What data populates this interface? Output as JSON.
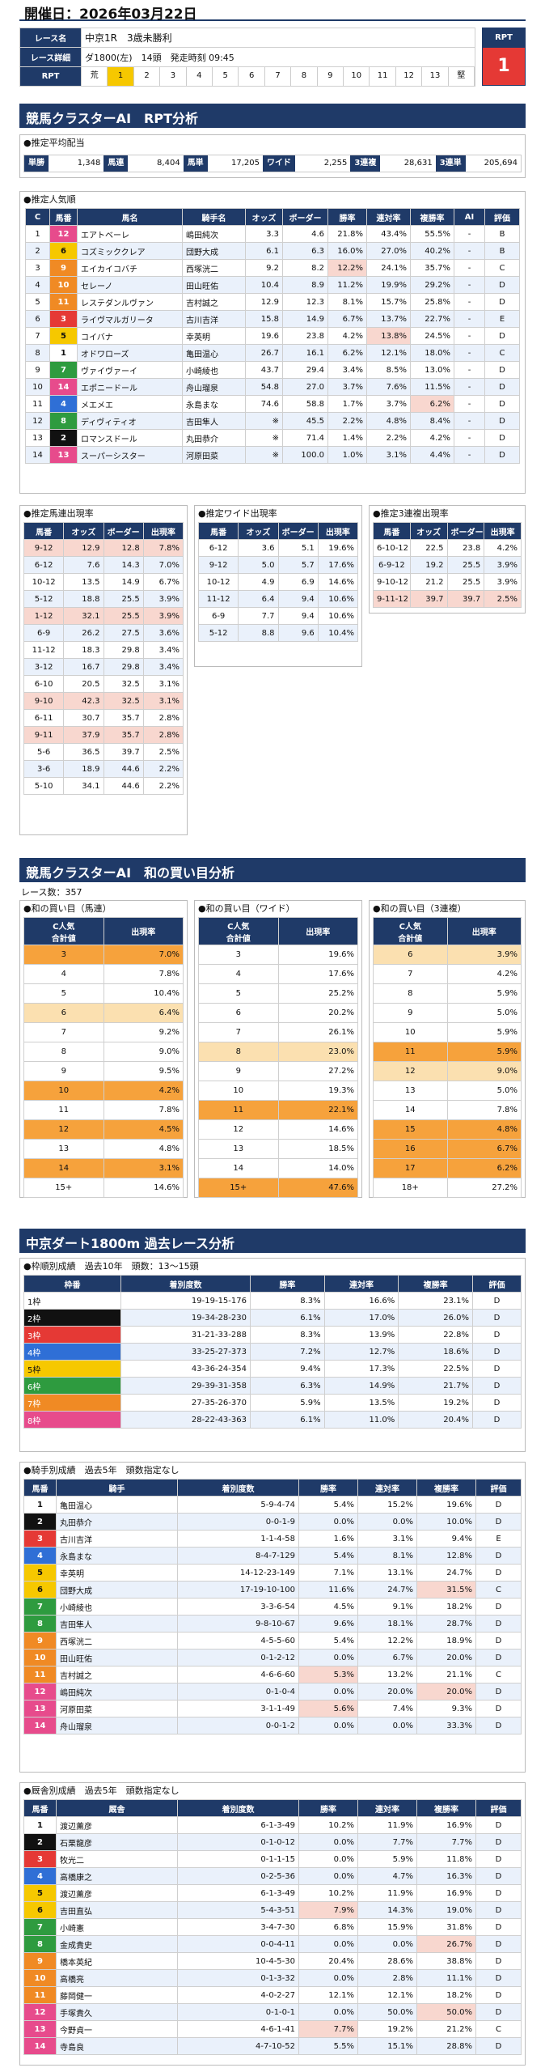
{
  "header": {
    "date": "開催日：2026年03月22日",
    "race_name_label": "レース名",
    "race_name": "中京1R　3歳未勝利",
    "race_detail_label": "レース詳細",
    "race_detail": "ダ1800(左)　14頭　発走時刻 09:45",
    "rpt_label": "RPT",
    "rpt_head": "RPT",
    "rpt_value": "1",
    "rpt_scale": [
      "荒",
      "1",
      "2",
      "3",
      "4",
      "5",
      "6",
      "7",
      "8",
      "9",
      "10",
      "11",
      "12",
      "13",
      "堅"
    ]
  },
  "colors": {
    "navy": "#1f3a68",
    "red": "#e53935",
    "waku": [
      "#ffffff",
      "#111111",
      "#e53935",
      "#2f6fd6",
      "#f6c800",
      "#2e9b3f",
      "#f08a24",
      "#e74b8c"
    ]
  },
  "sec1": {
    "title": "競馬クラスターAI　RPT分析",
    "payout": {
      "head": "●推定平均配当",
      "items": [
        {
          "k": "単勝",
          "v": "1,348"
        },
        {
          "k": "馬連",
          "v": "8,404"
        },
        {
          "k": "馬単",
          "v": "17,205"
        },
        {
          "k": "ワイド",
          "v": "2,255"
        },
        {
          "k": "3連複",
          "v": "28,631"
        },
        {
          "k": "3連単",
          "v": "205,694"
        }
      ]
    },
    "pop": {
      "head": "●推定人気順",
      "cols": [
        "C",
        "馬番",
        "馬名",
        "騎手名",
        "オッズ",
        "ボーダー",
        "勝率",
        "連対率",
        "複勝率",
        "AI",
        "評価"
      ],
      "rows": [
        [
          "1",
          "12",
          "エアトベーレ",
          "嶋田純次",
          "3.3",
          "4.6",
          "21.8%",
          "43.4%",
          "55.5%",
          "-",
          "B"
        ],
        [
          "2",
          "6",
          "コズミッククレア",
          "団野大成",
          "6.1",
          "6.3",
          "16.0%",
          "27.0%",
          "40.2%",
          "-",
          "B"
        ],
        [
          "3",
          "9",
          "エイカイコバチ",
          "西塚洸二",
          "9.2",
          "8.2",
          "12.2%",
          "24.1%",
          "35.7%",
          "-",
          "C"
        ],
        [
          "4",
          "10",
          "セレーノ",
          "田山旺佑",
          "10.4",
          "8.9",
          "11.2%",
          "19.9%",
          "29.2%",
          "-",
          "D"
        ],
        [
          "5",
          "11",
          "レステダンルヴァン",
          "吉村誠之",
          "12.9",
          "12.3",
          "8.1%",
          "15.7%",
          "25.8%",
          "-",
          "D"
        ],
        [
          "6",
          "3",
          "ライヴマルガリータ",
          "古川吉洋",
          "15.8",
          "14.9",
          "6.7%",
          "13.7%",
          "22.7%",
          "-",
          "E"
        ],
        [
          "7",
          "5",
          "コイバナ",
          "幸英明",
          "19.6",
          "23.8",
          "4.2%",
          "13.8%",
          "24.5%",
          "-",
          "D"
        ],
        [
          "8",
          "1",
          "オドワローズ",
          "亀田温心",
          "26.7",
          "16.1",
          "6.2%",
          "12.1%",
          "18.0%",
          "-",
          "C"
        ],
        [
          "9",
          "7",
          "ヴァイヴァーイ",
          "小崎綾也",
          "43.7",
          "29.4",
          "3.4%",
          "8.5%",
          "13.0%",
          "-",
          "D"
        ],
        [
          "10",
          "14",
          "エポニードール",
          "舟山瑠泉",
          "54.8",
          "27.0",
          "3.7%",
          "7.6%",
          "11.5%",
          "-",
          "D"
        ],
        [
          "11",
          "4",
          "メエメエ",
          "永島まな",
          "74.6",
          "58.8",
          "1.7%",
          "3.7%",
          "6.2%",
          "-",
          "D"
        ],
        [
          "12",
          "8",
          "ディヴィティオ",
          "吉田隼人",
          "※",
          "45.5",
          "2.2%",
          "4.8%",
          "8.4%",
          "-",
          "D"
        ],
        [
          "13",
          "2",
          "ロマンスドール",
          "丸田恭介",
          "※",
          "71.4",
          "1.4%",
          "2.2%",
          "4.2%",
          "-",
          "D"
        ],
        [
          "14",
          "13",
          "スーパーシスター",
          "河原田菜",
          "※",
          "100.0",
          "1.0%",
          "3.1%",
          "4.4%",
          "-",
          "D"
        ]
      ]
    },
    "umaren": {
      "head": "●推定馬連出現率",
      "cols": [
        "馬番",
        "オッズ",
        "ボーダー",
        "出現率"
      ],
      "rows": [
        [
          "9-12",
          "12.9",
          "12.8",
          "7.8%"
        ],
        [
          "6-12",
          "7.6",
          "14.3",
          "7.0%"
        ],
        [
          "10-12",
          "13.5",
          "14.9",
          "6.7%"
        ],
        [
          "5-12",
          "18.8",
          "25.5",
          "3.9%"
        ],
        [
          "1-12",
          "32.1",
          "25.5",
          "3.9%"
        ],
        [
          "6-9",
          "26.2",
          "27.5",
          "3.6%"
        ],
        [
          "11-12",
          "18.3",
          "29.8",
          "3.4%"
        ],
        [
          "3-12",
          "16.7",
          "29.8",
          "3.4%"
        ],
        [
          "6-10",
          "20.5",
          "32.5",
          "3.1%"
        ],
        [
          "9-10",
          "42.3",
          "32.5",
          "3.1%"
        ],
        [
          "6-11",
          "30.7",
          "35.7",
          "2.8%"
        ],
        [
          "9-11",
          "37.9",
          "35.7",
          "2.8%"
        ],
        [
          "5-6",
          "36.5",
          "39.7",
          "2.5%"
        ],
        [
          "3-6",
          "18.9",
          "44.6",
          "2.2%"
        ],
        [
          "5-10",
          "34.1",
          "44.6",
          "2.2%"
        ]
      ]
    },
    "wide": {
      "head": "●推定ワイド出現率",
      "cols": [
        "馬番",
        "オッズ",
        "ボーダー",
        "出現率"
      ],
      "rows": [
        [
          "6-12",
          "3.6",
          "5.1",
          "19.6%"
        ],
        [
          "9-12",
          "5.0",
          "5.7",
          "17.6%"
        ],
        [
          "10-12",
          "4.9",
          "6.9",
          "14.6%"
        ],
        [
          "11-12",
          "6.4",
          "9.4",
          "10.6%"
        ],
        [
          "6-9",
          "7.7",
          "9.4",
          "10.6%"
        ],
        [
          "5-12",
          "8.8",
          "9.6",
          "10.4%"
        ]
      ]
    },
    "trio": {
      "head": "●推定3連複出現率",
      "cols": [
        "馬番",
        "オッズ",
        "ボーダー",
        "出現率"
      ],
      "rows": [
        [
          "6-10-12",
          "22.5",
          "23.8",
          "4.2%"
        ],
        [
          "6-9-12",
          "19.2",
          "25.5",
          "3.9%"
        ],
        [
          "9-10-12",
          "21.2",
          "25.5",
          "3.9%"
        ],
        [
          "9-11-12",
          "39.7",
          "39.7",
          "2.5%"
        ]
      ]
    }
  },
  "sec2": {
    "title": "競馬クラスターAI　和の買い目分析",
    "count": "レース数：357",
    "tables": [
      {
        "head": "●和の買い目（馬連）",
        "cols": [
          "C人気\n合計値",
          "出現率"
        ],
        "rows": [
          [
            "3",
            "7.0%"
          ],
          [
            "4",
            "7.8%"
          ],
          [
            "5",
            "10.4%"
          ],
          [
            "6",
            "6.4%"
          ],
          [
            "7",
            "9.2%"
          ],
          [
            "8",
            "9.0%"
          ],
          [
            "9",
            "9.5%"
          ],
          [
            "10",
            "4.2%"
          ],
          [
            "11",
            "7.8%"
          ],
          [
            "12",
            "4.5%"
          ],
          [
            "13",
            "4.8%"
          ],
          [
            "14",
            "3.1%"
          ],
          [
            "15+",
            "14.6%"
          ]
        ]
      },
      {
        "head": "●和の買い目（ワイド）",
        "cols": [
          "C人気\n合計値",
          "出現率"
        ],
        "rows": [
          [
            "3",
            "19.6%"
          ],
          [
            "4",
            "17.6%"
          ],
          [
            "5",
            "25.2%"
          ],
          [
            "6",
            "20.2%"
          ],
          [
            "7",
            "26.1%"
          ],
          [
            "8",
            "23.0%"
          ],
          [
            "9",
            "27.2%"
          ],
          [
            "10",
            "19.3%"
          ],
          [
            "11",
            "22.1%"
          ],
          [
            "12",
            "14.6%"
          ],
          [
            "13",
            "18.5%"
          ],
          [
            "14",
            "14.0%"
          ],
          [
            "15+",
            "47.6%"
          ]
        ]
      },
      {
        "head": "●和の買い目（3連複）",
        "cols": [
          "C人気\n合計値",
          "出現率"
        ],
        "rows": [
          [
            "6",
            "3.9%"
          ],
          [
            "7",
            "4.2%"
          ],
          [
            "8",
            "5.9%"
          ],
          [
            "9",
            "5.0%"
          ],
          [
            "10",
            "5.9%"
          ],
          [
            "11",
            "5.9%"
          ],
          [
            "12",
            "9.0%"
          ],
          [
            "13",
            "5.0%"
          ],
          [
            "14",
            "7.8%"
          ],
          [
            "15",
            "4.8%"
          ],
          [
            "16",
            "6.7%"
          ],
          [
            "17",
            "6.2%"
          ],
          [
            "18+",
            "27.2%"
          ]
        ]
      }
    ]
  },
  "sec3": {
    "title": "中京ダート1800m 過去レース分析",
    "waku": {
      "head": "●枠順別成績　過去10年　頭数：13～15頭",
      "cols": [
        "枠番",
        "着別度数",
        "勝率",
        "連対率",
        "複勝率",
        "評価"
      ],
      "rows": [
        [
          "1枠",
          "19-19-15-176",
          "8.3%",
          "16.6%",
          "23.1%",
          "D"
        ],
        [
          "2枠",
          "19-34-28-230",
          "6.1%",
          "17.0%",
          "26.0%",
          "D"
        ],
        [
          "3枠",
          "31-21-33-288",
          "8.3%",
          "13.9%",
          "22.8%",
          "D"
        ],
        [
          "4枠",
          "33-25-27-373",
          "7.2%",
          "12.7%",
          "18.6%",
          "D"
        ],
        [
          "5枠",
          "43-36-24-354",
          "9.4%",
          "17.3%",
          "22.5%",
          "D"
        ],
        [
          "6枠",
          "29-39-31-358",
          "6.3%",
          "14.9%",
          "21.7%",
          "D"
        ],
        [
          "7枠",
          "27-35-26-370",
          "5.9%",
          "13.5%",
          "19.2%",
          "D"
        ],
        [
          "8枠",
          "28-22-43-363",
          "6.1%",
          "11.0%",
          "20.4%",
          "D"
        ]
      ]
    },
    "jockey": {
      "head": "●騎手別成績　過去5年　頭数指定なし",
      "cols": [
        "馬番",
        "騎手",
        "着別度数",
        "勝率",
        "連対率",
        "複勝率",
        "評価"
      ],
      "rows": [
        [
          "1",
          "亀田温心",
          "5-9-4-74",
          "5.4%",
          "15.2%",
          "19.6%",
          "D"
        ],
        [
          "2",
          "丸田恭介",
          "0-0-1-9",
          "0.0%",
          "0.0%",
          "10.0%",
          "D"
        ],
        [
          "3",
          "古川吉洋",
          "1-1-4-58",
          "1.6%",
          "3.1%",
          "9.4%",
          "E"
        ],
        [
          "4",
          "永島まな",
          "8-4-7-129",
          "5.4%",
          "8.1%",
          "12.8%",
          "D"
        ],
        [
          "5",
          "幸英明",
          "14-12-23-149",
          "7.1%",
          "13.1%",
          "24.7%",
          "D"
        ],
        [
          "6",
          "団野大成",
          "17-19-10-100",
          "11.6%",
          "24.7%",
          "31.5%",
          "C"
        ],
        [
          "7",
          "小崎綾也",
          "3-3-6-54",
          "4.5%",
          "9.1%",
          "18.2%",
          "D"
        ],
        [
          "8",
          "吉田隼人",
          "9-8-10-67",
          "9.6%",
          "18.1%",
          "28.7%",
          "D"
        ],
        [
          "9",
          "西塚洸二",
          "4-5-5-60",
          "5.4%",
          "12.2%",
          "18.9%",
          "D"
        ],
        [
          "10",
          "田山旺佑",
          "0-1-2-12",
          "0.0%",
          "6.7%",
          "20.0%",
          "D"
        ],
        [
          "11",
          "吉村誠之",
          "4-6-6-60",
          "5.3%",
          "13.2%",
          "21.1%",
          "C"
        ],
        [
          "12",
          "嶋田純次",
          "0-1-0-4",
          "0.0%",
          "20.0%",
          "20.0%",
          "D"
        ],
        [
          "13",
          "河原田菜",
          "3-1-1-49",
          "5.6%",
          "7.4%",
          "9.3%",
          "D"
        ],
        [
          "14",
          "舟山瑠泉",
          "0-0-1-2",
          "0.0%",
          "0.0%",
          "33.3%",
          "D"
        ]
      ]
    },
    "trainer": {
      "head": "●厩舎別成績　過去5年　頭数指定なし",
      "cols": [
        "馬番",
        "厩舎",
        "着別度数",
        "勝率",
        "連対率",
        "複勝率",
        "評価"
      ],
      "rows": [
        [
          "1",
          "渡辺薫彦",
          "6-1-3-49",
          "10.2%",
          "11.9%",
          "16.9%",
          "D"
        ],
        [
          "2",
          "石栗龍彦",
          "0-1-0-12",
          "0.0%",
          "7.7%",
          "7.7%",
          "D"
        ],
        [
          "3",
          "牧光二",
          "0-1-1-15",
          "0.0%",
          "5.9%",
          "11.8%",
          "D"
        ],
        [
          "4",
          "高橋康之",
          "0-2-5-36",
          "0.0%",
          "4.7%",
          "16.3%",
          "D"
        ],
        [
          "5",
          "渡辺薫彦",
          "6-1-3-49",
          "10.2%",
          "11.9%",
          "16.9%",
          "D"
        ],
        [
          "6",
          "吉田直弘",
          "5-4-3-51",
          "7.9%",
          "14.3%",
          "19.0%",
          "D"
        ],
        [
          "7",
          "小崎憲",
          "3-4-7-30",
          "6.8%",
          "15.9%",
          "31.8%",
          "D"
        ],
        [
          "8",
          "金成貴史",
          "0-0-4-11",
          "0.0%",
          "0.0%",
          "26.7%",
          "D"
        ],
        [
          "9",
          "橋本英紀",
          "10-4-5-30",
          "20.4%",
          "28.6%",
          "38.8%",
          "D"
        ],
        [
          "10",
          "高橋亮",
          "0-1-3-32",
          "0.0%",
          "2.8%",
          "11.1%",
          "D"
        ],
        [
          "11",
          "藤岡健一",
          "4-0-2-27",
          "12.1%",
          "12.1%",
          "18.2%",
          "D"
        ],
        [
          "12",
          "手塚貴久",
          "0-1-0-1",
          "0.0%",
          "50.0%",
          "50.0%",
          "D"
        ],
        [
          "13",
          "今野貞一",
          "4-6-1-41",
          "7.7%",
          "19.2%",
          "21.2%",
          "C"
        ],
        [
          "14",
          "寺島良",
          "4-7-10-52",
          "5.5%",
          "15.1%",
          "28.8%",
          "D"
        ]
      ]
    }
  }
}
